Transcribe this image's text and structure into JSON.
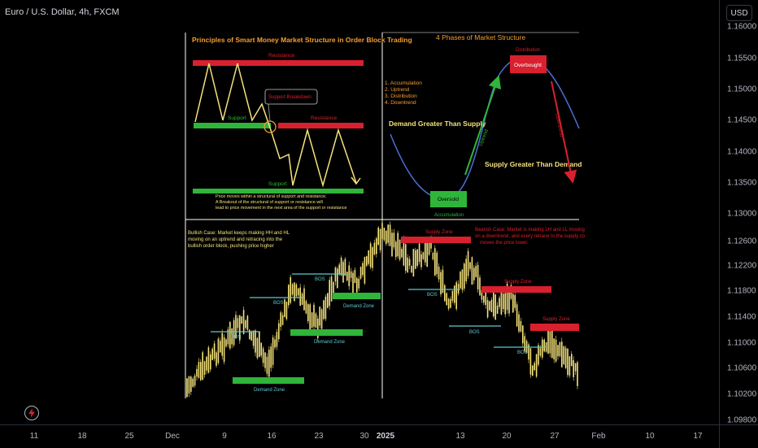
{
  "header": {
    "symbol_title": "Euro / U.S. Dollar, 4h, FXCM",
    "currency": "USD"
  },
  "price_axis": [
    "1.16000",
    "1.15500",
    "1.15000",
    "1.14500",
    "1.14000",
    "1.13500",
    "1.13000",
    "1.12600",
    "1.12200",
    "1.11800",
    "1.11400",
    "1.11000",
    "1.10600",
    "1.10200",
    "1.09800"
  ],
  "time_axis": [
    {
      "label": "11",
      "bold": false
    },
    {
      "label": "18",
      "bold": false
    },
    {
      "label": "25",
      "bold": false
    },
    {
      "label": "Dec",
      "bold": false
    },
    {
      "label": "9",
      "bold": false
    },
    {
      "label": "16",
      "bold": false
    },
    {
      "label": "23",
      "bold": false
    },
    {
      "label": "30",
      "bold": false
    },
    {
      "label": "2025",
      "bold": true
    },
    {
      "label": "13",
      "bold": false
    },
    {
      "label": "20",
      "bold": false
    },
    {
      "label": "27",
      "bold": false
    },
    {
      "label": "Feb",
      "bold": false
    },
    {
      "label": "10",
      "bold": false
    },
    {
      "label": "17",
      "bold": false
    }
  ],
  "idea": {
    "panel1": {
      "title": "Principles of Smart Money Market Structure in Order Block Trading",
      "resistance_top": "Resistance",
      "support_left": "Support",
      "callout": "Support Breakdown",
      "resistance_right": "Resistance",
      "support_bottom": "Support",
      "note_1": "Price moves within a structural of support and resistance.",
      "note_2": "A Breakout of the structural of support or resistance will",
      "note_3": "lead to price movement in the next area of the support or resistance"
    },
    "panel2": {
      "title": "4 Phases of Market Structure",
      "phase_1": "1. Accumulation",
      "phase_2": "2. Uptrend",
      "phase_3": "3. Distribution",
      "phase_4": "4. Downtrend",
      "demand_text": "Demand Greater Than Supply",
      "supply_text": "Supply Greater Than Demand",
      "distribution": "Distribution",
      "overbought": "Overbought",
      "oversold": "Oversold",
      "accumulation": "Accumulation",
      "uptrend": "Uptrend",
      "downtrend": "Downtrend"
    },
    "panel3": {
      "bull_1": "Bullish Case: Market keeps making HH and HL",
      "bull_2": "moving on an uptrend and retracing into the",
      "bull_3": "bullish order block, pushing price higher",
      "bos": "BOS",
      "demand_zone": "Demand Zone"
    },
    "panel4": {
      "bear_1": "Bearish Case: Market is making LH and LL moving",
      "bear_2": "on a downtrend, and every retrace to the supply zo",
      "bear_3": "moves the price lower.",
      "supply_zone": "Supply Zone",
      "bos": "BOS"
    }
  },
  "colors": {
    "background": "#000000",
    "candle": "#f5e27a",
    "red_zone": "#d9202e",
    "green_zone": "#2fb53a",
    "bos_line": "#5fc8cf",
    "orange_text": "#f59e2e",
    "axis_text": "#b2b5be"
  }
}
